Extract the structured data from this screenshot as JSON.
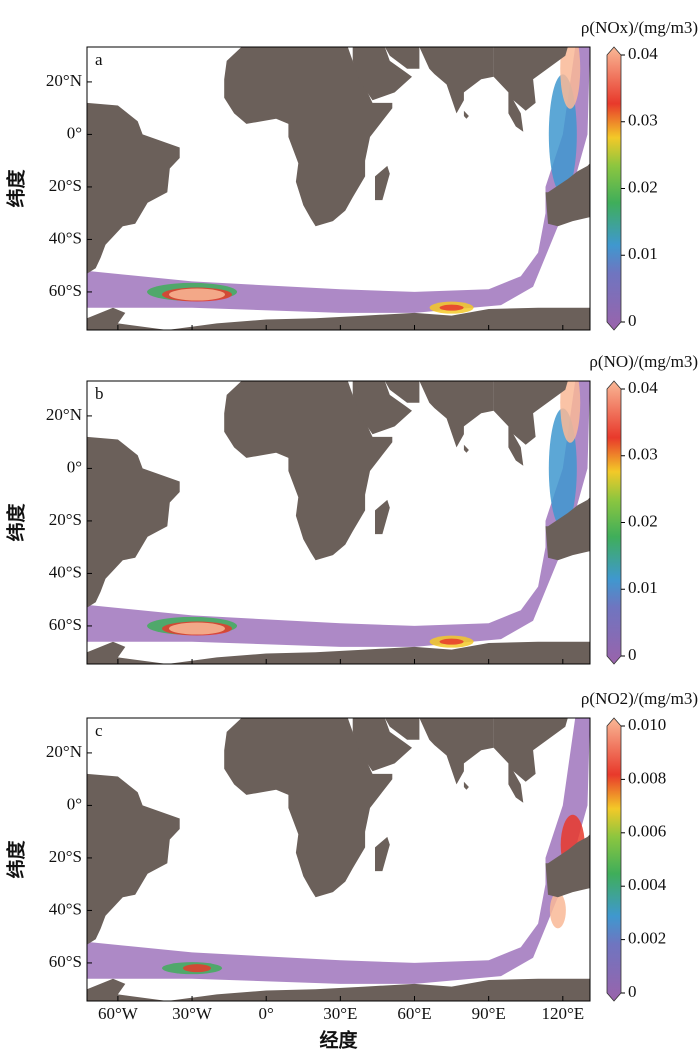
{
  "x_label": "经度",
  "y_label": "纬度",
  "xlim": [
    -72.5,
    131
  ],
  "ylim": [
    -74.5,
    33.3
  ],
  "xticks": [
    {
      "value": -60,
      "label": "60°W"
    },
    {
      "value": -30,
      "label": "30°W"
    },
    {
      "value": 0,
      "label": "0°"
    },
    {
      "value": 30,
      "label": "30°E"
    },
    {
      "value": 60,
      "label": "60°E"
    },
    {
      "value": 90,
      "label": "90°E"
    },
    {
      "value": 120,
      "label": "120°E"
    }
  ],
  "yticks": [
    {
      "value": 20,
      "label": "20°N"
    },
    {
      "value": 0,
      "label": "0°"
    },
    {
      "value": -20,
      "label": "20°S"
    },
    {
      "value": -40,
      "label": "40°S"
    },
    {
      "value": -60,
      "label": "60°S"
    }
  ],
  "panels": [
    {
      "label": "a",
      "colorbar": {
        "title": "ρ(NOx)/(mg/m3)",
        "lim": [
          0,
          0.04
        ],
        "ticks": [
          0,
          0.01,
          0.02,
          0.03,
          0.04
        ]
      }
    },
    {
      "label": "b",
      "colorbar": {
        "title": "ρ(NO)/(mg/m3)",
        "lim": [
          0,
          0.04
        ],
        "ticks": [
          0,
          0.01,
          0.02,
          0.03,
          0.04
        ]
      }
    },
    {
      "label": "c",
      "colorbar": {
        "title": "ρ(NO2)/(mg/m3)",
        "lim": [
          0,
          0.01
        ],
        "ticks": [
          0,
          0.002,
          0.004,
          0.006,
          0.008,
          {
            "value": 0.01,
            "label": "0.010"
          }
        ]
      }
    }
  ]
}
